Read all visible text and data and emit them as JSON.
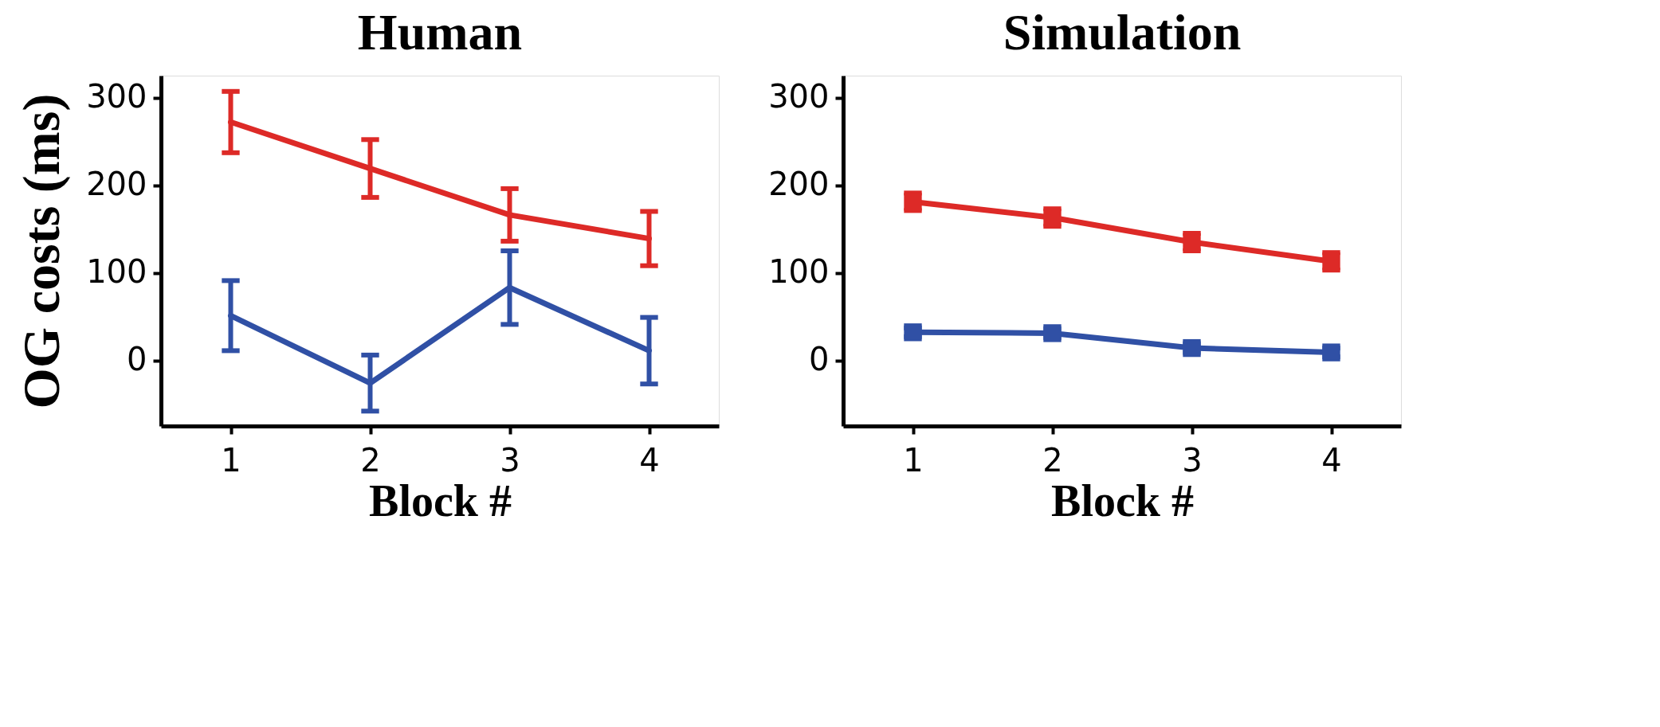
{
  "chart_data": [
    {
      "type": "line",
      "title": "Human",
      "xlabel": "Block #",
      "ylabel": "OG costs (ms)",
      "x": [
        1,
        2,
        3,
        4
      ],
      "xlim": [
        0.5,
        4.5
      ],
      "xticks": [
        1,
        2,
        3,
        4
      ],
      "ylim": [
        -75,
        325
      ],
      "yticks": [
        0,
        100,
        200,
        300
      ],
      "grid": false,
      "marker": "none",
      "line_style": "solid",
      "series": [
        {
          "color": "#dd2a27",
          "values": [
            272,
            219,
            166,
            139
          ],
          "errors": [
            35,
            33,
            30,
            31
          ]
        },
        {
          "color": "#3050a5",
          "values": [
            51,
            -26,
            83,
            11
          ],
          "errors": [
            40,
            32,
            42,
            38
          ]
        }
      ]
    },
    {
      "type": "line",
      "title": "Simulation",
      "xlabel": "Block #",
      "x": [
        1,
        2,
        3,
        4
      ],
      "xlim": [
        0.5,
        4.5
      ],
      "xticks": [
        1,
        2,
        3,
        4
      ],
      "ylim": [
        -75,
        325
      ],
      "yticks": [
        0,
        100,
        200,
        300
      ],
      "grid": false,
      "marker": "square",
      "line_style": "solid",
      "series": [
        {
          "color": "#dd2a27",
          "values": [
            181,
            163,
            135,
            113
          ],
          "errors": [
            10,
            10,
            10,
            10
          ]
        },
        {
          "color": "#3050a5",
          "values": [
            32,
            31,
            14,
            9
          ],
          "errors": [
            5,
            5,
            5,
            5
          ]
        }
      ]
    }
  ]
}
